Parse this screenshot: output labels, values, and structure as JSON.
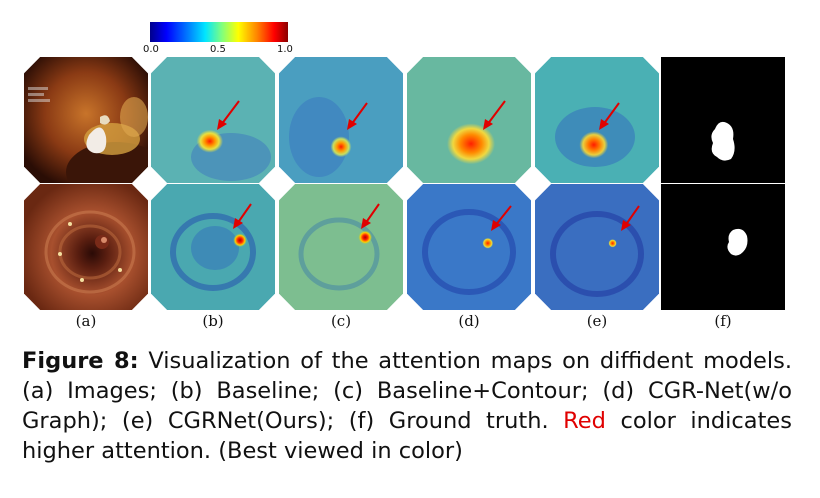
{
  "colorbar": {
    "min": "0.0",
    "mid": "0.5",
    "max": "1.0"
  },
  "columns": [
    "(a)",
    "(b)",
    "(c)",
    "(d)",
    "(e)",
    "(f)"
  ],
  "caption": {
    "label": "Figure 8:",
    "text_1": " Visualization of the attention maps on diffident models. (a) Images; (b) Baseline; (c) Baseline+Contour; (d) CGR-Net(w/o Graph); (e) CGRNet(Ours); (f) Ground truth. ",
    "red_word": "Red",
    "text_2": " color indicates higher attention. (Best viewed in color)"
  },
  "colors": {
    "accent": "#e00000",
    "arrow": "#e00000"
  }
}
